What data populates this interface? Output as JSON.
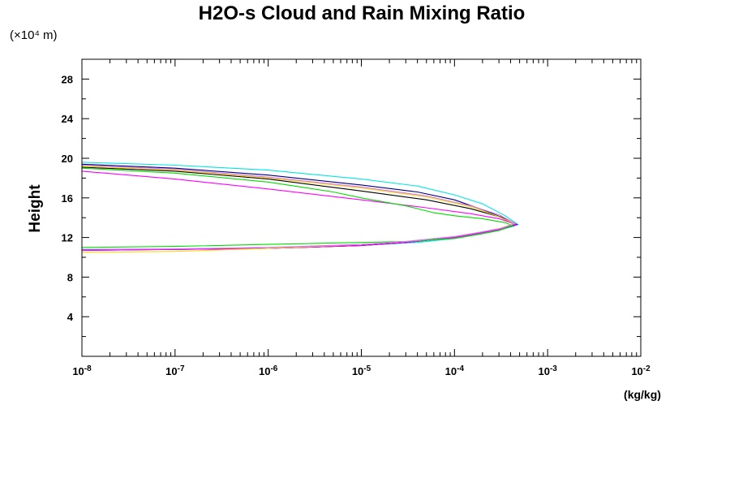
{
  "chart_data": {
    "type": "line",
    "title": "H2O-s Cloud and Rain Mixing Ratio",
    "y_scale_note": "(×10⁴ m)",
    "xlabel": "(kg/kg)",
    "ylabel": "Height",
    "x_scale": "log",
    "xlim": [
      1e-08,
      0.01
    ],
    "ylim": [
      0,
      30
    ],
    "grid": false,
    "legend": "none",
    "x_ticks": [
      {
        "base": "10",
        "exp": "-8",
        "value": 1e-08
      },
      {
        "base": "10",
        "exp": "-7",
        "value": 1e-07
      },
      {
        "base": "10",
        "exp": "-6",
        "value": 1e-06
      },
      {
        "base": "10",
        "exp": "-5",
        "value": 1e-05
      },
      {
        "base": "10",
        "exp": "-4",
        "value": 0.0001
      },
      {
        "base": "10",
        "exp": "-3",
        "value": 0.001
      },
      {
        "base": "10",
        "exp": "-2",
        "value": 0.01
      }
    ],
    "y_ticks": [
      "4",
      "8",
      "12",
      "16",
      "20",
      "24",
      "28"
    ],
    "series": [
      {
        "color": "#00e5e5",
        "points": [
          [
            1e-08,
            19.6
          ],
          [
            1e-07,
            19.3
          ],
          [
            1e-06,
            18.8
          ],
          [
            1e-05,
            17.9
          ],
          [
            4e-05,
            17.2
          ],
          [
            0.0001,
            16.3
          ],
          [
            0.0002,
            15.4
          ],
          [
            0.00035,
            14.2
          ],
          [
            0.00048,
            13.3
          ],
          [
            0.00035,
            12.9
          ],
          [
            0.0002,
            12.4
          ],
          [
            0.0001,
            11.9
          ],
          [
            4e-05,
            11.5
          ],
          [
            1e-05,
            11.2
          ],
          [
            1e-06,
            10.9
          ],
          [
            1e-07,
            10.8
          ],
          [
            1e-08,
            10.75
          ]
        ]
      },
      {
        "color": "#000080",
        "points": [
          [
            1e-08,
            19.4
          ],
          [
            1e-07,
            19.0
          ],
          [
            1e-06,
            18.3
          ],
          [
            1e-05,
            17.3
          ],
          [
            4e-05,
            16.6
          ],
          [
            0.0001,
            15.8
          ],
          [
            0.0002,
            14.8
          ],
          [
            0.00035,
            13.9
          ],
          [
            0.00047,
            13.3
          ],
          [
            0.00034,
            12.9
          ],
          [
            0.0002,
            12.5
          ],
          [
            0.0001,
            12.0
          ],
          [
            3e-05,
            11.5
          ],
          [
            1e-05,
            11.2
          ],
          [
            1e-06,
            10.9
          ],
          [
            1e-07,
            10.8
          ],
          [
            1e-08,
            10.75
          ]
        ]
      },
      {
        "color": "#000000",
        "points": [
          [
            1e-08,
            19.1
          ],
          [
            1e-07,
            18.7
          ],
          [
            1e-06,
            17.9
          ],
          [
            1e-05,
            16.7
          ],
          [
            5e-05,
            15.8
          ],
          [
            0.00015,
            14.9
          ],
          [
            0.0003,
            14.1
          ],
          [
            0.00045,
            13.3
          ],
          [
            0.00032,
            12.9
          ],
          [
            0.0002,
            12.5
          ],
          [
            0.0001,
            12.0
          ],
          [
            3e-05,
            11.5
          ],
          [
            1e-05,
            11.2
          ],
          [
            1e-06,
            10.9
          ],
          [
            1e-07,
            10.8
          ],
          [
            1e-08,
            10.7
          ]
        ]
      },
      {
        "color": "#ff00ff",
        "points": [
          [
            1e-08,
            18.7
          ],
          [
            1e-07,
            17.9
          ],
          [
            1e-06,
            16.9
          ],
          [
            1e-05,
            15.8
          ],
          [
            5e-05,
            15.0
          ],
          [
            0.00015,
            14.4
          ],
          [
            0.0003,
            13.9
          ],
          [
            0.00046,
            13.3
          ],
          [
            0.0003,
            12.8
          ],
          [
            0.00018,
            12.4
          ],
          [
            0.0001,
            12.0
          ],
          [
            3e-05,
            11.5
          ],
          [
            1e-05,
            11.2
          ],
          [
            1e-06,
            10.9
          ],
          [
            1e-07,
            10.8
          ],
          [
            1e-08,
            10.7
          ]
        ]
      },
      {
        "color": "#00dd00",
        "points": [
          [
            1e-08,
            19.0
          ],
          [
            1e-07,
            18.5
          ],
          [
            1e-06,
            17.6
          ],
          [
            5e-06,
            16.6
          ],
          [
            1e-05,
            16.0
          ],
          [
            3e-05,
            15.2
          ],
          [
            6e-05,
            14.5
          ],
          [
            0.0001,
            14.2
          ],
          [
            0.0002,
            13.9
          ],
          [
            0.00035,
            13.5
          ],
          [
            0.00042,
            13.2
          ],
          [
            0.0003,
            12.7
          ],
          [
            0.00018,
            12.3
          ],
          [
            0.0001,
            11.9
          ],
          [
            3e-05,
            11.6
          ],
          [
            1e-05,
            11.5
          ],
          [
            1e-06,
            11.3
          ],
          [
            1e-07,
            11.1
          ],
          [
            1e-08,
            11.0
          ]
        ]
      },
      {
        "color": "#ffd700",
        "points": [
          [
            1e-08,
            19.2
          ],
          [
            1e-07,
            18.8
          ],
          [
            1e-06,
            18.0
          ],
          [
            1e-05,
            17.0
          ],
          [
            5e-05,
            16.1
          ],
          [
            0.00015,
            15.1
          ],
          [
            0.0003,
            14.1
          ],
          [
            0.00044,
            13.4
          ],
          [
            0.0003,
            12.9
          ],
          [
            0.00018,
            12.5
          ],
          [
            0.0001,
            12.1
          ],
          [
            3e-05,
            11.6
          ],
          [
            1e-05,
            11.3
          ],
          [
            1e-06,
            10.9
          ],
          [
            1e-07,
            10.6
          ],
          [
            1e-08,
            10.5
          ]
        ]
      },
      {
        "color": "#cc77ff",
        "points": [
          [
            1e-08,
            19.3
          ],
          [
            1e-07,
            18.9
          ],
          [
            1e-06,
            18.1
          ],
          [
            1e-05,
            17.1
          ],
          [
            5e-05,
            16.2
          ],
          [
            0.00015,
            15.2
          ],
          [
            0.0003,
            14.3
          ],
          [
            0.00045,
            13.4
          ],
          [
            0.00031,
            12.9
          ],
          [
            0.00018,
            12.5
          ],
          [
            0.0001,
            12.1
          ],
          [
            3e-05,
            11.6
          ],
          [
            1e-05,
            11.3
          ],
          [
            1e-06,
            11.0
          ],
          [
            1e-07,
            10.85
          ],
          [
            1e-08,
            10.8
          ]
        ]
      }
    ]
  }
}
